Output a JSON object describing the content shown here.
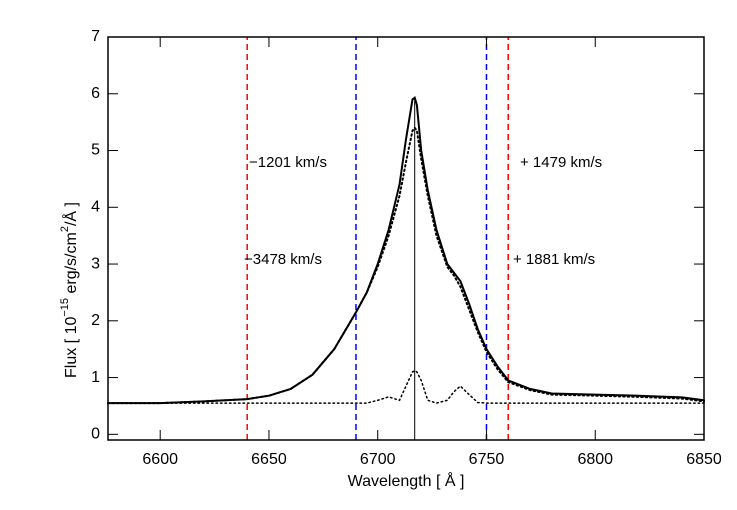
{
  "chart_data": {
    "type": "line",
    "xlabel": "Wavelength [ Å ]",
    "ylabel": [
      "Flux  [ 10",
      "−15",
      " erg/s/cm",
      "2",
      "/Å ]"
    ],
    "xlim": [
      6576,
      6850
    ],
    "ylim": [
      -0.1,
      7
    ],
    "xticks": [
      6600,
      6650,
      6700,
      6750,
      6800,
      6850
    ],
    "yticks": [
      0,
      1,
      2,
      3,
      4,
      5,
      6,
      7
    ],
    "x": [
      6576,
      6600,
      6620,
      6640,
      6650,
      6660,
      6670,
      6680,
      6690,
      6695,
      6700,
      6705,
      6710,
      6713,
      6716,
      6717,
      6718,
      6720,
      6723,
      6727,
      6732,
      6735,
      6738,
      6742,
      6746,
      6750,
      6755,
      6760,
      6770,
      6780,
      6800,
      6820,
      6840,
      6850
    ],
    "series": [
      {
        "color": "#000000",
        "dash": "solid",
        "width": 2,
        "values": [
          0.55,
          0.55,
          0.58,
          0.62,
          0.68,
          0.8,
          1.05,
          1.5,
          2.15,
          2.5,
          3.0,
          3.6,
          4.4,
          5.2,
          5.9,
          5.93,
          5.8,
          5.0,
          4.3,
          3.6,
          3.0,
          2.85,
          2.7,
          2.3,
          1.85,
          1.5,
          1.2,
          0.95,
          0.8,
          0.72,
          0.7,
          0.68,
          0.65,
          0.6
        ]
      },
      {
        "color": "#000000",
        "dash": "dotted",
        "width": 2,
        "values": [
          0.55,
          0.55,
          0.58,
          0.62,
          0.68,
          0.8,
          1.05,
          1.5,
          2.15,
          2.5,
          2.95,
          3.5,
          4.2,
          4.8,
          5.35,
          5.4,
          5.35,
          4.85,
          4.2,
          3.5,
          2.95,
          2.8,
          2.6,
          2.2,
          1.8,
          1.45,
          1.15,
          0.92,
          0.78,
          0.7,
          0.68,
          0.66,
          0.63,
          0.58
        ]
      },
      {
        "color": "#000000",
        "dash": "dotted",
        "width": 1.5,
        "values": [
          0.55,
          0.55,
          0.55,
          0.55,
          0.55,
          0.55,
          0.55,
          0.55,
          0.55,
          0.55,
          0.6,
          0.66,
          0.6,
          0.85,
          1.1,
          1.12,
          1.1,
          0.95,
          0.6,
          0.55,
          0.6,
          0.75,
          0.85,
          0.7,
          0.56,
          0.55,
          0.55,
          0.55,
          0.55,
          0.55,
          0.55,
          0.55,
          0.55,
          0.55
        ]
      }
    ],
    "vlines": [
      {
        "x": 6640,
        "color": "#ff0000",
        "dash": "dashed"
      },
      {
        "x": 6690,
        "color": "#0000ff",
        "dash": "dashed"
      },
      {
        "x": 6750,
        "color": "#0000ff",
        "dash": "dashed"
      },
      {
        "x": 6760,
        "color": "#ff0000",
        "dash": "dashed"
      },
      {
        "x": 6717,
        "color": "#000000",
        "dash": "solid"
      }
    ],
    "annotations": [
      {
        "text": "−1201 km/s",
        "color": "#0000ff"
      },
      {
        "text": "+ 1479 km/s",
        "color": "#0000ff"
      },
      {
        "text": "−3478 km/s",
        "color": "#ff0000"
      },
      {
        "text": "+ 1881 km/s",
        "color": "#ff0000"
      }
    ]
  }
}
